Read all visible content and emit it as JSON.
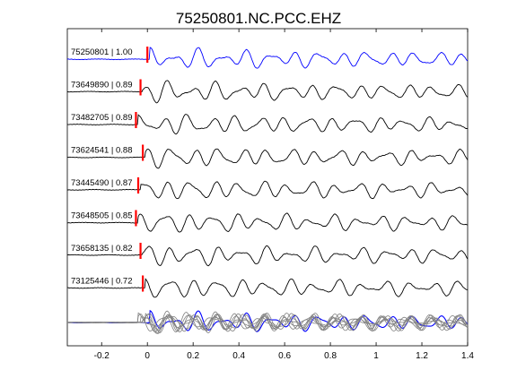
{
  "chart_data": {
    "type": "line",
    "title": "75250801.NC.PCC.EHZ",
    "xlabel": "",
    "ylabel": "",
    "xlim": [
      -0.35,
      1.4
    ],
    "x_ticks": [
      "-0.2",
      "0",
      "0.2",
      "0.4",
      "0.6",
      "0.8",
      "1",
      "1.2",
      "1.4"
    ],
    "x_tick_values": [
      -0.2,
      0,
      0.2,
      0.4,
      0.6,
      0.8,
      1.0,
      1.2,
      1.4
    ],
    "grid": false,
    "series": [
      {
        "label": "75250801 | 1.00",
        "event_id": "75250801",
        "correlation": 1.0,
        "pick_time": 0.0,
        "color": "#0000ff"
      },
      {
        "label": "73649890 | 0.89",
        "event_id": "73649890",
        "correlation": 0.89,
        "pick_time": -0.03,
        "color": "#000000"
      },
      {
        "label": "73482705 | 0.89",
        "event_id": "73482705",
        "correlation": 0.89,
        "pick_time": -0.05,
        "color": "#000000"
      },
      {
        "label": "73624541 | 0.88",
        "event_id": "73624541",
        "correlation": 0.88,
        "pick_time": -0.02,
        "color": "#000000"
      },
      {
        "label": "73445490 | 0.87",
        "event_id": "73445490",
        "correlation": 0.87,
        "pick_time": -0.04,
        "color": "#000000"
      },
      {
        "label": "73648505 | 0.85",
        "event_id": "73648505",
        "correlation": 0.85,
        "pick_time": -0.05,
        "color": "#000000"
      },
      {
        "label": "73658135 | 0.82",
        "event_id": "73658135",
        "correlation": 0.82,
        "pick_time": -0.03,
        "color": "#000000"
      },
      {
        "label": "73125446 | 0.72",
        "event_id": "73125446",
        "correlation": 0.72,
        "pick_time": -0.02,
        "color": "#000000"
      }
    ],
    "stack": {
      "color_overlay": "#808080",
      "color_reference": "#0000ff"
    },
    "pick_marker_color": "#ff0000"
  }
}
